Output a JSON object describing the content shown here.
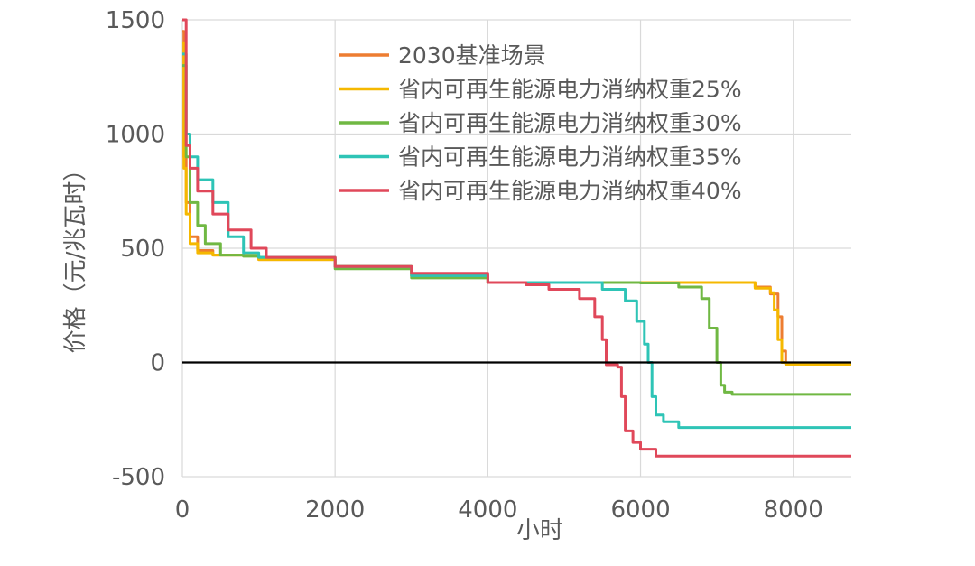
{
  "chart_data": {
    "type": "line",
    "xlabel": "小时",
    "ylabel": "价格（元/兆瓦时）",
    "xlim": [
      0,
      8760
    ],
    "ylim": [
      -500,
      1500
    ],
    "xticks": [
      0,
      2000,
      4000,
      6000,
      8000
    ],
    "yticks": [
      -500,
      0,
      500,
      1000,
      1500
    ],
    "xtick_labels": [
      "0",
      "2000",
      "4000",
      "6000",
      "8000"
    ],
    "ytick_labels": [
      "-500",
      "0",
      "500",
      "1000",
      "1500"
    ],
    "grid": true,
    "legend_position": "top-right",
    "series": [
      {
        "name": "2030基准场景",
        "color": "#ED7D31",
        "x": [
          0,
          20,
          50,
          100,
          200,
          400,
          1000,
          2000,
          3000,
          4000,
          5000,
          6000,
          7000,
          7500,
          7700,
          7800,
          7850,
          7900,
          7950,
          8760
        ],
        "y": [
          1450,
          900,
          700,
          550,
          490,
          470,
          450,
          420,
          380,
          350,
          350,
          350,
          350,
          330,
          300,
          200,
          50,
          -5,
          -5,
          -5
        ]
      },
      {
        "name": "省内可再生能源电力消纳权重25%",
        "color": "#F5B800",
        "x": [
          0,
          20,
          50,
          100,
          200,
          400,
          1000,
          2000,
          3000,
          4000,
          5000,
          6000,
          7000,
          7500,
          7700,
          7750,
          7800,
          7850,
          7900,
          8760
        ],
        "y": [
          1400,
          850,
          650,
          520,
          480,
          470,
          450,
          420,
          380,
          350,
          350,
          350,
          350,
          325,
          305,
          230,
          100,
          0,
          -8,
          -8
        ]
      },
      {
        "name": "省内可再生能源电力消纳权重30%",
        "color": "#70B843",
        "x": [
          0,
          50,
          100,
          200,
          300,
          500,
          800,
          1000,
          2000,
          3000,
          4000,
          5000,
          6000,
          6500,
          6800,
          6900,
          7000,
          7050,
          7100,
          7200,
          8760
        ],
        "y": [
          1300,
          900,
          700,
          600,
          520,
          470,
          465,
          460,
          410,
          370,
          350,
          350,
          348,
          330,
          280,
          150,
          0,
          -100,
          -130,
          -140,
          -140
        ]
      },
      {
        "name": "省内可再生能源电力消纳权重35%",
        "color": "#2EC4B6",
        "x": [
          0,
          50,
          100,
          200,
          400,
          600,
          800,
          1000,
          2000,
          3000,
          4000,
          5000,
          5500,
          5800,
          5950,
          6050,
          6100,
          6150,
          6200,
          6300,
          6500,
          8760
        ],
        "y": [
          1350,
          1000,
          900,
          800,
          700,
          550,
          480,
          460,
          420,
          380,
          350,
          350,
          320,
          270,
          180,
          80,
          0,
          -150,
          -230,
          -260,
          -285,
          -285
        ]
      },
      {
        "name": "省内可再生能源电力消纳权重40%",
        "color": "#E0485A",
        "x": [
          0,
          50,
          100,
          200,
          400,
          600,
          900,
          1100,
          2000,
          3000,
          4000,
          4500,
          4800,
          5200,
          5400,
          5500,
          5550,
          5700,
          5750,
          5800,
          5900,
          6000,
          6200,
          8760
        ],
        "y": [
          1500,
          950,
          850,
          750,
          650,
          580,
          500,
          460,
          420,
          390,
          350,
          340,
          320,
          280,
          200,
          100,
          -10,
          -20,
          -150,
          -300,
          -350,
          -380,
          -410,
          -410
        ]
      }
    ]
  }
}
